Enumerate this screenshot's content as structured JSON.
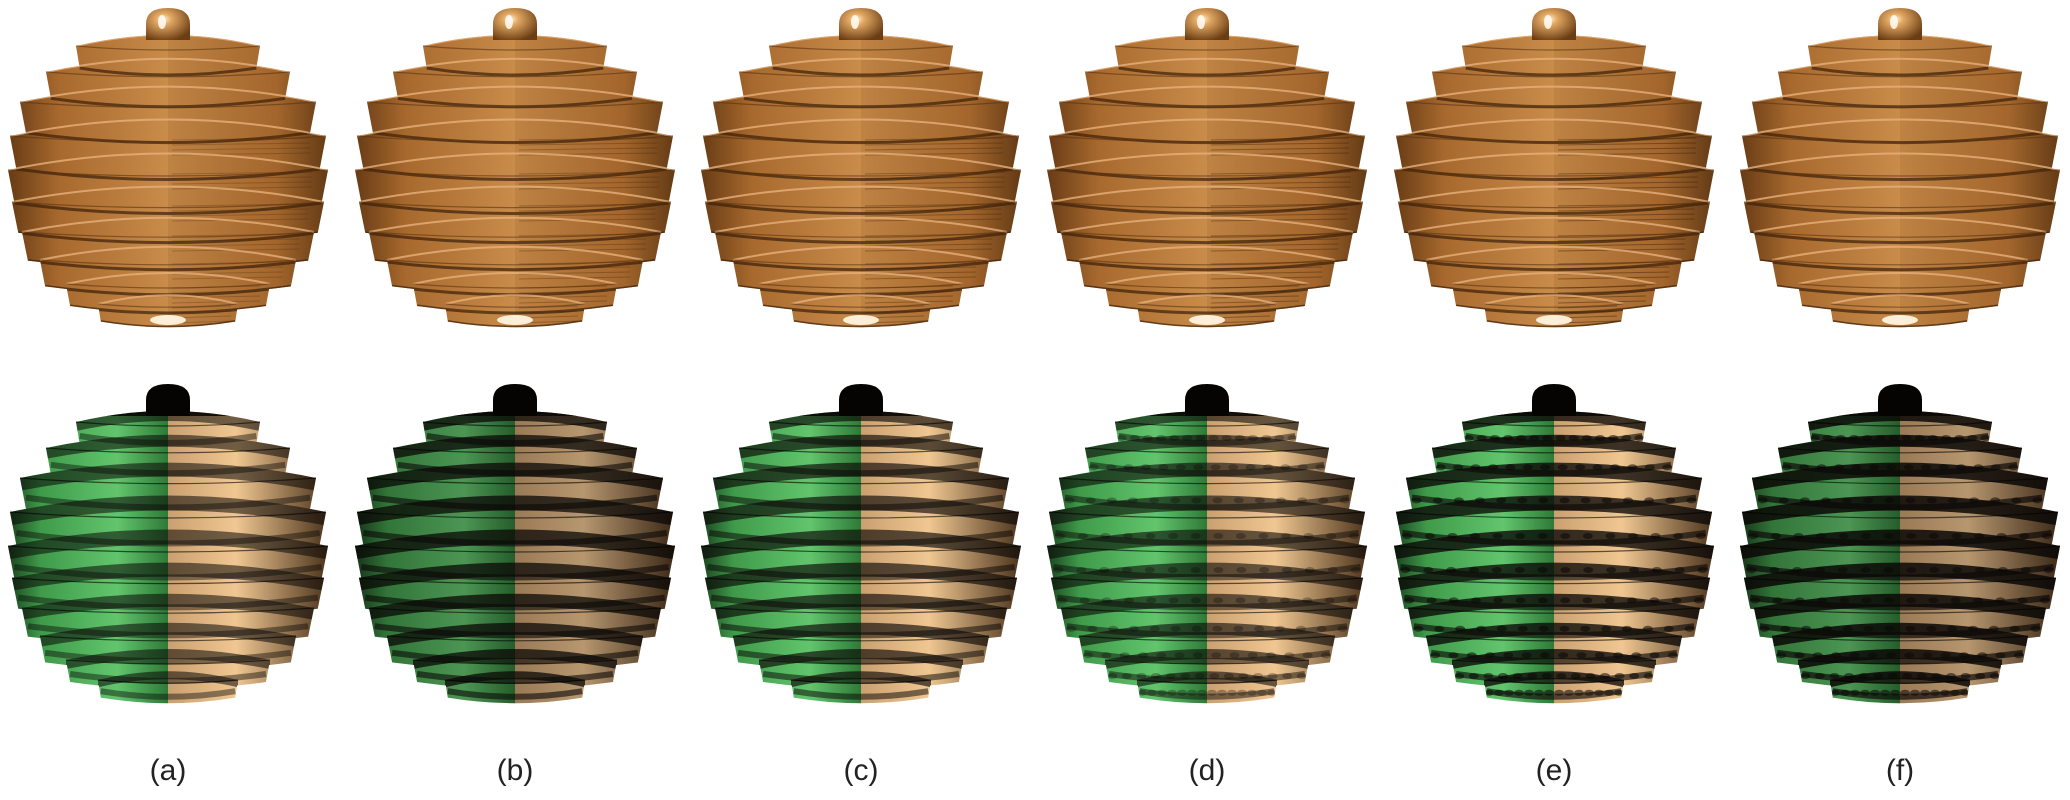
{
  "figure": {
    "panels": [
      {
        "id": "a",
        "caption": "(a)",
        "bottom_style": "smooth"
      },
      {
        "id": "b",
        "caption": "(b)",
        "bottom_style": "dark-bands"
      },
      {
        "id": "c",
        "caption": "(c)",
        "bottom_style": "mixed"
      },
      {
        "id": "d",
        "caption": "(d)",
        "bottom_style": "wavy"
      },
      {
        "id": "e",
        "caption": "(e)",
        "bottom_style": "noisy"
      },
      {
        "id": "f",
        "caption": "(f)",
        "bottom_style": "dark-noisy"
      }
    ],
    "colors": {
      "background": "#ffffff",
      "copper_light": "#f2c28a",
      "copper_mid": "#b97b3b",
      "copper_dark": "#3a2008",
      "green": "#5fc26a",
      "tan": "#e9bd88",
      "black": "#0a0806",
      "caption": "#222222"
    }
  }
}
